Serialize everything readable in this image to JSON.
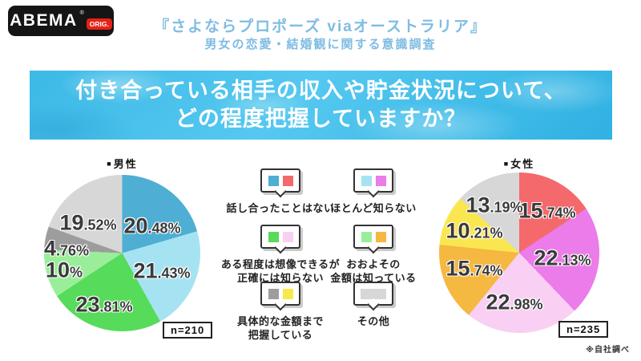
{
  "logo": {
    "brand": "ABEMA",
    "reg_mark": "®",
    "badge": "ORIG."
  },
  "header": {
    "title": "『さよならプロポーズ viaオーストラリア』",
    "subtitle": "男女の恋愛・結婚観に関する意識調査",
    "accent_color": "#7fbce3"
  },
  "question_banner": {
    "line1": "付き合っている相手の収入や貯金状況について、",
    "line2": "どの程度把握していますか？",
    "background_color": "#3fbde8"
  },
  "legend": {
    "items": [
      {
        "lines": [
          "話し合ったことはない"
        ],
        "colors": [
          "#4eaed3",
          "#f4696b"
        ]
      },
      {
        "lines": [
          "ほとんど知らない"
        ],
        "colors": [
          "#a6e3f2",
          "#eb7ce9"
        ]
      },
      {
        "lines": [
          "ある程度は想像できるが",
          "正確には知らない"
        ],
        "colors": [
          "#57db5b",
          "#f9cff3"
        ]
      },
      {
        "lines": [
          "おおよその",
          "金額は知っている"
        ],
        "colors": [
          "#9aee9a",
          "#f5b840"
        ]
      },
      {
        "lines": [
          "具体的な金額まで",
          "把握している"
        ],
        "colors": [
          "#9d9d9d",
          "#f7e94c"
        ]
      },
      {
        "lines": [
          "その他"
        ],
        "colors": [
          "#d7d7d7"
        ]
      }
    ]
  },
  "footnote": "※自社調べ",
  "chart_data": [
    {
      "type": "pie",
      "marker": "■",
      "title": "男性",
      "n": "n=210",
      "categories": [
        "話し合ったことはない",
        "ほとんど知らない",
        "ある程度は想像できるが正確には知らない",
        "おおよその金額は知っている",
        "具体的な金額まで把握している",
        "その他"
      ],
      "values": [
        20.48,
        21.43,
        23.81,
        10,
        4.76,
        19.52
      ],
      "colors": [
        "#4eaed3",
        "#a6e3f2",
        "#57db5b",
        "#9aee9a",
        "#9d9d9d",
        "#d7d7d7"
      ],
      "labels": [
        {
          "int": "20",
          "frac": ".48%"
        },
        {
          "int": "21",
          "frac": ".43%"
        },
        {
          "int": "23",
          "frac": ".81%"
        },
        {
          "int": "10",
          "frac": "%"
        },
        {
          "int": "4",
          "frac": ".76%"
        },
        {
          "int": "19",
          "frac": ".52%"
        }
      ],
      "start_angle_deg": 0,
      "direction": "clockwise"
    },
    {
      "type": "pie",
      "marker": "■",
      "title": "女性",
      "n": "n=235",
      "categories": [
        "話し合ったことはない",
        "ほとんど知らない",
        "ある程度は想像できるが正確には知らない",
        "おおよその金額は知っている",
        "具体的な金額まで把握している",
        "その他"
      ],
      "values": [
        15.74,
        22.13,
        22.98,
        15.74,
        10.21,
        13.19
      ],
      "colors": [
        "#f4696b",
        "#eb7ce9",
        "#f9cff3",
        "#f5b840",
        "#fae74f",
        "#d7d7d7"
      ],
      "labels": [
        {
          "int": "15",
          "frac": ".74%"
        },
        {
          "int": "22",
          "frac": ".13%"
        },
        {
          "int": "22",
          "frac": ".98%"
        },
        {
          "int": "15",
          "frac": ".74%"
        },
        {
          "int": "10",
          "frac": ".21%"
        },
        {
          "int": "13",
          "frac": ".19%"
        }
      ],
      "start_angle_deg": 0,
      "direction": "clockwise"
    }
  ]
}
